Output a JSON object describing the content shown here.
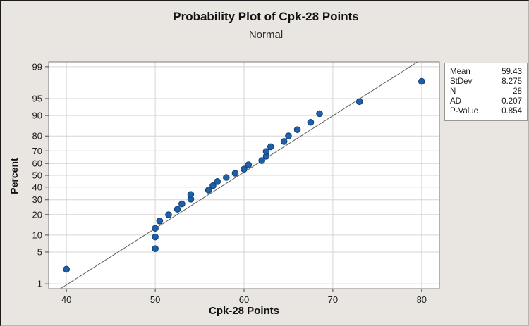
{
  "figure": {
    "title": "Probability Plot of Cpk-28 Points",
    "subtitle": "Normal",
    "xlabel": "Cpk-28 Points",
    "ylabel": "Percent",
    "stats_rows": [
      {
        "label": "Mean",
        "value": "59.43"
      },
      {
        "label": "StDev",
        "value": "8.275"
      },
      {
        "label": "N",
        "value": "28"
      },
      {
        "label": "AD",
        "value": "0.207"
      },
      {
        "label": "P-Value",
        "value": "0.854"
      }
    ]
  },
  "chart_data": {
    "type": "scatter",
    "subtype": "normal_probability_plot",
    "title": "Probability Plot of Cpk-28 Points",
    "subtitle": "Normal",
    "xlabel": "Cpk-28 Points",
    "ylabel": "Percent",
    "x_ticks": [
      40,
      50,
      60,
      70,
      80
    ],
    "y_ticks_percent": [
      1,
      5,
      10,
      20,
      30,
      40,
      50,
      60,
      70,
      80,
      90,
      95,
      99
    ],
    "xlim": [
      38,
      82
    ],
    "z_range": [
      -2.43,
      2.43
    ],
    "grid": true,
    "legend_position": "none",
    "points": [
      {
        "x": 40,
        "percent": 2.2
      },
      {
        "x": 50,
        "percent": 5.8
      },
      {
        "x": 50,
        "percent": 9.3
      },
      {
        "x": 50,
        "percent": 12.8
      },
      {
        "x": 50.5,
        "percent": 16.4
      },
      {
        "x": 51.5,
        "percent": 19.9
      },
      {
        "x": 52.5,
        "percent": 23.4
      },
      {
        "x": 53,
        "percent": 27.0
      },
      {
        "x": 54,
        "percent": 30.5
      },
      {
        "x": 54,
        "percent": 34.1
      },
      {
        "x": 56,
        "percent": 37.6
      },
      {
        "x": 56.5,
        "percent": 41.2
      },
      {
        "x": 57,
        "percent": 44.7
      },
      {
        "x": 58,
        "percent": 48.2
      },
      {
        "x": 59,
        "percent": 51.8
      },
      {
        "x": 60,
        "percent": 55.3
      },
      {
        "x": 60.5,
        "percent": 58.9
      },
      {
        "x": 62,
        "percent": 62.4
      },
      {
        "x": 62.5,
        "percent": 65.9
      },
      {
        "x": 62.5,
        "percent": 69.5
      },
      {
        "x": 63,
        "percent": 73.0
      },
      {
        "x": 64.5,
        "percent": 76.6
      },
      {
        "x": 65,
        "percent": 80.1
      },
      {
        "x": 66,
        "percent": 83.6
      },
      {
        "x": 67.5,
        "percent": 87.2
      },
      {
        "x": 68.5,
        "percent": 90.7
      },
      {
        "x": 73,
        "percent": 94.3
      },
      {
        "x": 80,
        "percent": 97.8
      }
    ],
    "fit_line": {
      "mean": 59.43,
      "stdev": 8.275
    },
    "stats": {
      "Mean": 59.43,
      "StDev": 8.275,
      "N": 28,
      "AD": 0.207,
      "P-Value": 0.854
    },
    "colors": {
      "point": "#1e5fa8",
      "point_edge": "#123f72",
      "fit_line": "#595959",
      "grid": "#d8d6d2",
      "frame": "#7f7d79",
      "tick": "#4d4d4d",
      "plot_bg": "#ffffff",
      "figure_bg": "#e9e6e2"
    }
  }
}
